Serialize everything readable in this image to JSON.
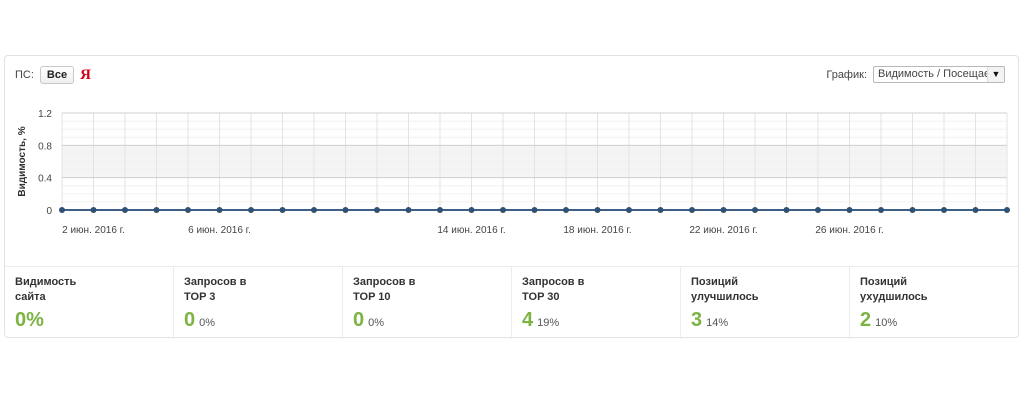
{
  "filter": {
    "ps_label": "ПС:",
    "all_button": "Все",
    "yandex_glyph": "Я"
  },
  "graph_select": {
    "label": "График:",
    "value": "Видимость / Посещаемость"
  },
  "chart_data": {
    "type": "line",
    "ylabel": "Видимость, %",
    "ylim": [
      0,
      1.2
    ],
    "yticks": [
      "1.2",
      "0.8",
      "0.4",
      "0"
    ],
    "xticks": [
      "2 июн. 2016 г.",
      "6 июн. 2016 г.",
      "14 июн. 2016 г.",
      "18 июн. 2016 г.",
      "22 июн. 2016 г.",
      "26 июн. 2016 г."
    ],
    "series": [
      {
        "values": [
          0,
          0,
          0,
          0,
          0,
          0,
          0,
          0,
          0,
          0,
          0,
          0,
          0,
          0,
          0,
          0,
          0,
          0,
          0,
          0,
          0,
          0,
          0,
          0,
          0,
          0,
          0,
          0,
          0,
          0,
          0
        ]
      }
    ],
    "grid": true,
    "line_color": "#3b5f85"
  },
  "stats": [
    {
      "label": "Видимость\nсайта",
      "value": "0%",
      "pct": ""
    },
    {
      "label": "Запросов в\nTOP 3",
      "value": "0",
      "pct": "0%"
    },
    {
      "label": "Запросов в\nTOP 10",
      "value": "0",
      "pct": "0%"
    },
    {
      "label": "Запросов в\nTOP 30",
      "value": "4",
      "pct": "19%"
    },
    {
      "label": "Позиций\nулучшилось",
      "value": "3",
      "pct": "14%"
    },
    {
      "label": "Позиций\nухудшилось",
      "value": "2",
      "pct": "10%"
    }
  ]
}
